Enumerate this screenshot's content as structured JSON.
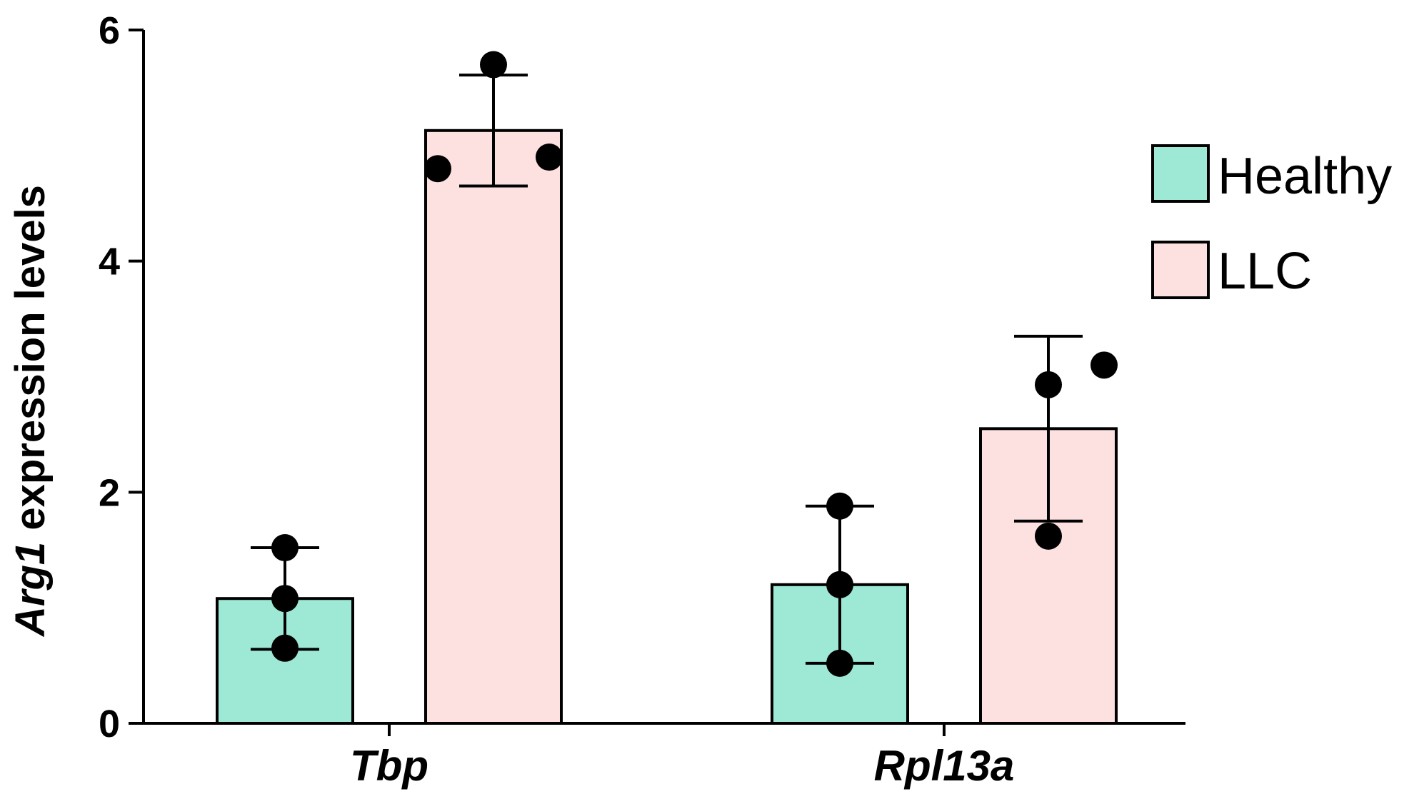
{
  "chart_data": {
    "type": "bar",
    "title": "",
    "xlabel": "",
    "ylabel": "Arg1 expression levels",
    "ylabel_italic_part": "Arg1",
    "ylabel_rest": " expression levels",
    "ylim": [
      0,
      6
    ],
    "yticks": [
      "0",
      "2",
      "4",
      "6"
    ],
    "ytick_values": [
      0,
      2,
      4,
      6
    ],
    "categories": [
      "Tbp",
      "Rpl13a"
    ],
    "series": [
      {
        "name": "Healthy",
        "color": "#9de9d6",
        "values": [
          1.08,
          1.2
        ],
        "error": [
          0.44,
          0.68
        ],
        "points": [
          [
            1.52,
            1.08,
            0.65
          ],
          [
            1.88,
            1.2,
            0.52
          ]
        ]
      },
      {
        "name": "LLC",
        "color": "#fde0e0",
        "values": [
          5.13,
          2.55
        ],
        "error": [
          0.48,
          0.8
        ],
        "points": [
          [
            5.7,
            4.8,
            4.9
          ],
          [
            2.93,
            3.1,
            1.62
          ]
        ]
      }
    ],
    "legend": {
      "position": "right"
    },
    "grid": false
  }
}
